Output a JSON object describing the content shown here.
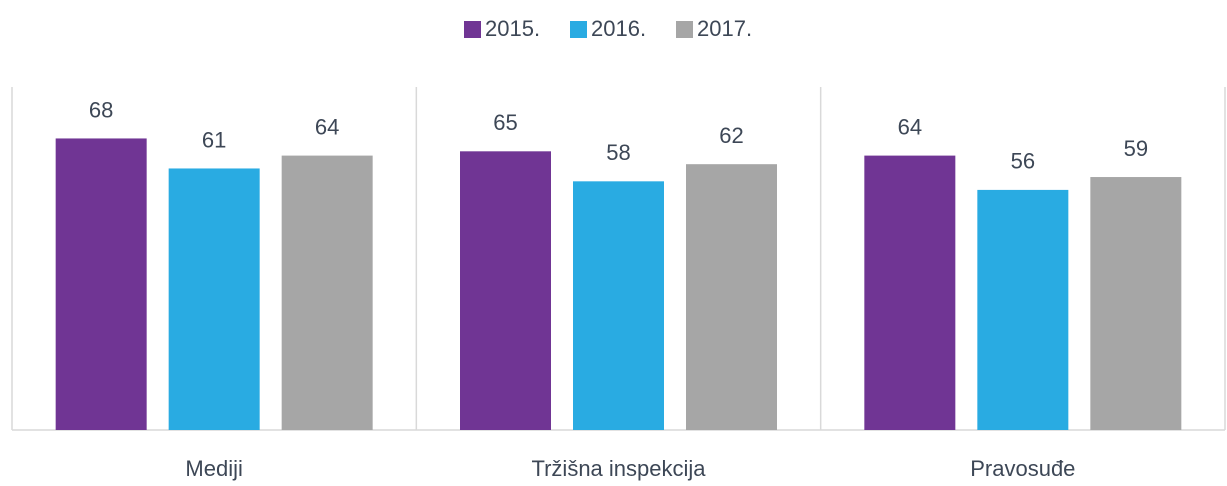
{
  "chart_data": {
    "type": "bar",
    "categories": [
      "Mediji",
      "Tržišna inspekcija",
      "Pravosuđe"
    ],
    "series": [
      {
        "name": "2015.",
        "color": "#703594",
        "values": [
          68,
          65,
          64
        ]
      },
      {
        "name": "2016.",
        "color": "#29abe2",
        "values": [
          61,
          58,
          56
        ]
      },
      {
        "name": "2017.",
        "color": "#a6a6a6",
        "values": [
          64,
          62,
          59
        ]
      }
    ],
    "ylim": [
      0,
      80
    ],
    "legend": "top"
  }
}
